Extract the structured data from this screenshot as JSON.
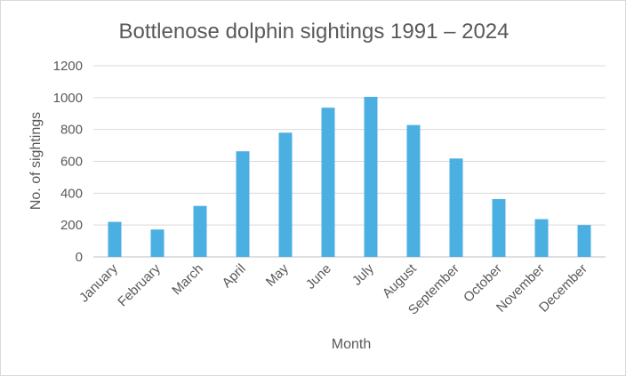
{
  "chart_data": {
    "type": "bar",
    "title": "Bottlenose dolphin sightings 1991 – 2024",
    "xlabel": "Month",
    "ylabel": "No. of sightings",
    "categories": [
      "January",
      "February",
      "March",
      "April",
      "May",
      "June",
      "July",
      "August",
      "September",
      "October",
      "November",
      "December"
    ],
    "values": [
      220,
      172,
      320,
      663,
      780,
      937,
      1005,
      828,
      618,
      363,
      237,
      200
    ],
    "ylim": [
      0,
      1200
    ],
    "yticks": [
      0,
      200,
      400,
      600,
      800,
      1000,
      1200
    ],
    "grid": true,
    "legend": "none",
    "bar_color": "#4bb0e1"
  }
}
